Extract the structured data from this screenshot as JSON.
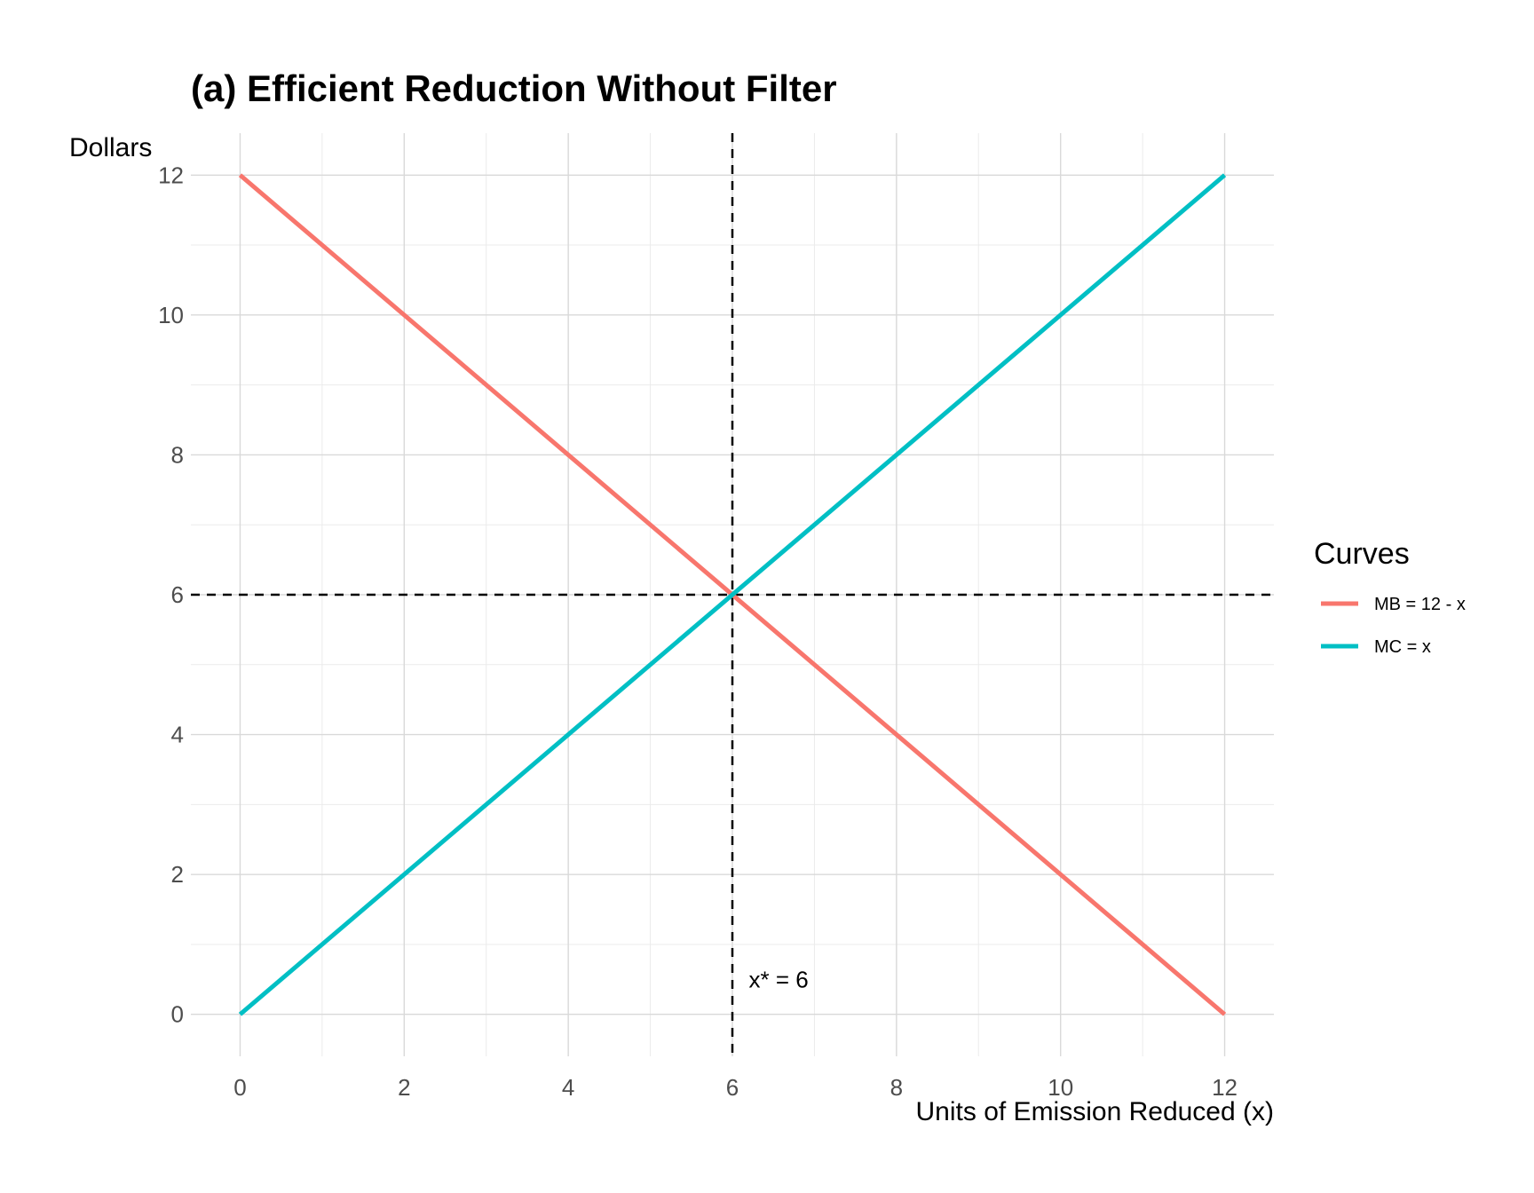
{
  "chart_data": {
    "type": "line",
    "title": "(a) Efficient Reduction Without Filter",
    "xlabel": "Units of Emission Reduced (x)",
    "ylabel": "Dollars",
    "xlim": [
      -0.6,
      12.6
    ],
    "ylim": [
      -0.6,
      12.6
    ],
    "x_ticks": [
      0,
      2,
      4,
      6,
      8,
      10,
      12
    ],
    "y_ticks": [
      0,
      2,
      4,
      6,
      8,
      10,
      12
    ],
    "x_minor": [
      1,
      3,
      5,
      7,
      9,
      11
    ],
    "y_minor": [
      1,
      3,
      5,
      7,
      9,
      11
    ],
    "grid": true,
    "legend": {
      "title": "Curves",
      "placement": "right"
    },
    "series": [
      {
        "name": "MB = 12 - x",
        "color": "#F8766D",
        "x": [
          0,
          12
        ],
        "y": [
          12,
          0
        ]
      },
      {
        "name": "MC = x",
        "color": "#00BFC4",
        "x": [
          0,
          12
        ],
        "y": [
          0,
          12
        ]
      }
    ],
    "reference_lines": [
      {
        "axis": "x",
        "value": 6,
        "style": "dashed",
        "color": "#000000"
      },
      {
        "axis": "y",
        "value": 6,
        "style": "dashed",
        "color": "#000000"
      }
    ],
    "annotations": [
      {
        "text": "x* = 6",
        "x": 6.2,
        "y": 0.5
      }
    ]
  }
}
